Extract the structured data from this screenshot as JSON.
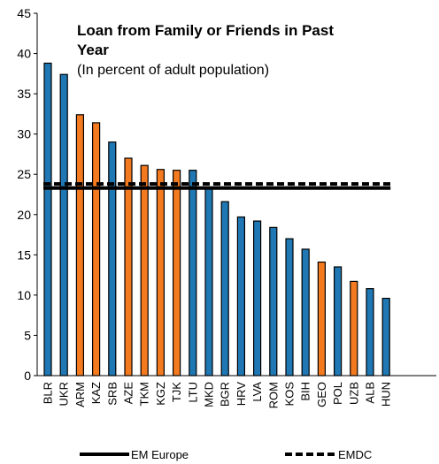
{
  "chart_data": {
    "type": "bar",
    "title_lines": [
      "Loan from Family or Friends in Past",
      "Year"
    ],
    "subtitle": "(In percent of adult population)",
    "ylim": [
      0,
      45
    ],
    "yticks": [
      0,
      5,
      10,
      15,
      20,
      25,
      30,
      35,
      40,
      45
    ],
    "grid": false,
    "legend_position": "bottom",
    "categories": [
      "BLR",
      "UKR",
      "ARM",
      "KAZ",
      "SRB",
      "AZE",
      "TKM",
      "KGZ",
      "TJK",
      "LTU",
      "MKD",
      "BGR",
      "HRV",
      "LVA",
      "ROM",
      "KOS",
      "BIH",
      "GEO",
      "POL",
      "UZB",
      "ALB",
      "HUN"
    ],
    "values": [
      38.8,
      37.4,
      32.4,
      31.4,
      29.0,
      27.0,
      26.1,
      25.6,
      25.5,
      25.5,
      23.4,
      21.6,
      19.7,
      19.2,
      18.4,
      17.0,
      15.7,
      14.1,
      13.5,
      11.7,
      10.8,
      9.6
    ],
    "bar_groups": [
      "blue",
      "blue",
      "orange",
      "orange",
      "blue",
      "orange",
      "orange",
      "orange",
      "orange",
      "blue",
      "blue",
      "blue",
      "blue",
      "blue",
      "blue",
      "blue",
      "blue",
      "orange",
      "blue",
      "orange",
      "blue",
      "blue"
    ],
    "colors": {
      "blue": "#1f77b4",
      "orange": "#f47a1f",
      "outline": "#000000"
    },
    "reference_lines": [
      {
        "name": "EM Europe",
        "value": 23.3,
        "style": "solid"
      },
      {
        "name": "EMDC",
        "value": 23.8,
        "style": "dashed"
      }
    ]
  }
}
